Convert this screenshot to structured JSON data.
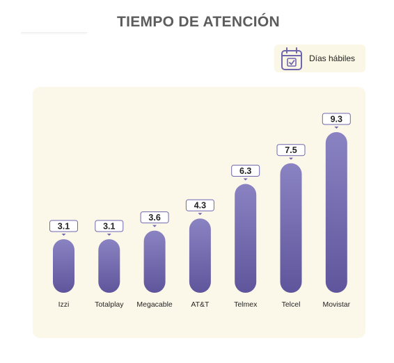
{
  "title": "TIEMPO DE ATENCIÓN",
  "legend": {
    "label": "Días hábiles",
    "icon": "calendar-check-icon"
  },
  "colors": {
    "bar": "#7b72b5",
    "bar_top": "#8a83c2",
    "bar_bottom": "#5f559c",
    "panel": "#fcf8e9",
    "label_border": "#6f66ad"
  },
  "chart_data": {
    "type": "bar",
    "title": "TIEMPO DE ATENCIÓN",
    "categories": [
      "Izzi",
      "Totalplay",
      "Megacable",
      "AT&T",
      "Telmex",
      "Telcel",
      "Movistar"
    ],
    "values": [
      3.1,
      3.1,
      3.6,
      4.3,
      6.3,
      7.5,
      9.3
    ],
    "series": [
      {
        "name": "Días hábiles",
        "values": [
          3.1,
          3.1,
          3.6,
          4.3,
          6.3,
          7.5,
          9.3
        ]
      }
    ],
    "ylim": [
      0,
      9.3
    ],
    "grid": false,
    "legend_position": "top-right"
  }
}
